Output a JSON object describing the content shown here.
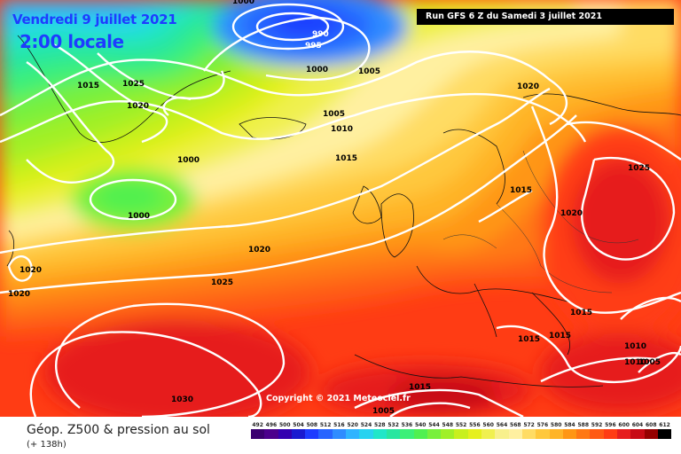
{
  "header": {
    "date": "Vendredi 9 juillet 2021",
    "time": "2:00 locale",
    "run": "Run GFS 6 Z du Samedi 3 juillet 2021"
  },
  "copyright": "Copyright © 2021 Meteociel.fr",
  "footer": {
    "title": "Géop. Z500 & pression au sol",
    "lead": "(+ 138h)"
  },
  "legend": {
    "values": [
      "492",
      "496",
      "500",
      "504",
      "508",
      "512",
      "516",
      "520",
      "524",
      "528",
      "532",
      "536",
      "540",
      "544",
      "548",
      "552",
      "556",
      "560",
      "564",
      "568",
      "572",
      "576",
      "580",
      "584",
      "588",
      "592",
      "596",
      "600",
      "604",
      "608",
      "612"
    ],
    "colors": [
      "#3a0070",
      "#4b008c",
      "#3300b0",
      "#1a1ad0",
      "#1e3cff",
      "#2864ff",
      "#2f8cff",
      "#30b4ff",
      "#28d2f0",
      "#20e6c8",
      "#28e6a0",
      "#3cf078",
      "#50f050",
      "#78f03c",
      "#a0f028",
      "#c8f01e",
      "#e6f01e",
      "#f0f050",
      "#f8f08c",
      "#fff0a0",
      "#ffdc64",
      "#ffc83c",
      "#ffb428",
      "#ff9614",
      "#ff7814",
      "#ff5a14",
      "#ff3c14",
      "#e61e1e",
      "#c80a14",
      "#960000",
      "#000000"
    ]
  },
  "isobars": [
    {
      "text": "1000",
      "color": "#000"
    },
    {
      "text": "990",
      "color": "#fff"
    },
    {
      "text": "995",
      "color": "#fff"
    },
    {
      "text": "1000",
      "color": "#000"
    },
    {
      "text": "1005",
      "color": "#000"
    },
    {
      "text": "1015",
      "color": "#000"
    },
    {
      "text": "1025",
      "color": "#000"
    },
    {
      "text": "1020",
      "color": "#000"
    },
    {
      "text": "1005",
      "color": "#000"
    },
    {
      "text": "1010",
      "color": "#000"
    },
    {
      "text": "1015",
      "color": "#000"
    },
    {
      "text": "1000",
      "color": "#000"
    },
    {
      "text": "1000",
      "color": "#000"
    },
    {
      "text": "1020",
      "color": "#000"
    },
    {
      "text": "1020",
      "color": "#000"
    },
    {
      "text": "1025",
      "color": "#000"
    },
    {
      "text": "1015",
      "color": "#000"
    },
    {
      "text": "1020",
      "color": "#000"
    },
    {
      "text": "1025",
      "color": "#000"
    },
    {
      "text": "1020",
      "color": "#000"
    },
    {
      "text": "1020",
      "color": "#000"
    },
    {
      "text": "1015",
      "color": "#000"
    },
    {
      "text": "1015",
      "color": "#000"
    },
    {
      "text": "1010",
      "color": "#000"
    },
    {
      "text": "1010",
      "color": "#000"
    },
    {
      "text": "1005",
      "color": "#000"
    },
    {
      "text": "1030",
      "color": "#000"
    },
    {
      "text": "1015",
      "color": "#000"
    },
    {
      "text": "1005",
      "color": "#000"
    },
    {
      "text": "1015",
      "color": "#000"
    }
  ]
}
